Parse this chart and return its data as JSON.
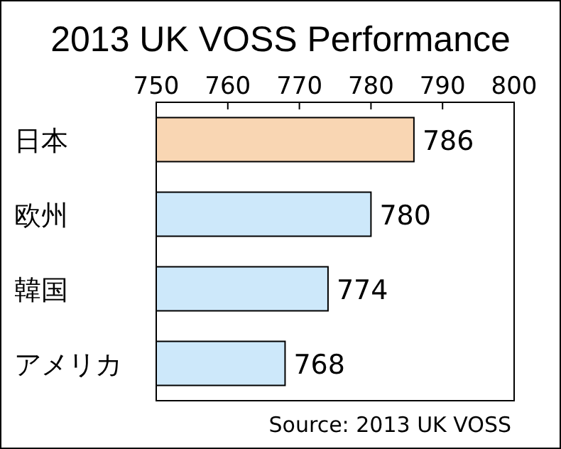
{
  "chart_data": {
    "type": "bar",
    "orientation": "horizontal",
    "title": "2013 UK VOSS Performance",
    "categories": [
      "日本",
      "欧州",
      "韓国",
      "アメリカ"
    ],
    "values": [
      786,
      780,
      774,
      768
    ],
    "colors": [
      "#f9d6b3",
      "#cde8fa",
      "#cde8fa",
      "#cde8fa"
    ],
    "xlim": [
      750,
      800
    ],
    "xticks": [
      750,
      760,
      770,
      780,
      790,
      800
    ],
    "data_labels": true,
    "annotations": [
      "Source: 2013 UK VOSS"
    ]
  }
}
